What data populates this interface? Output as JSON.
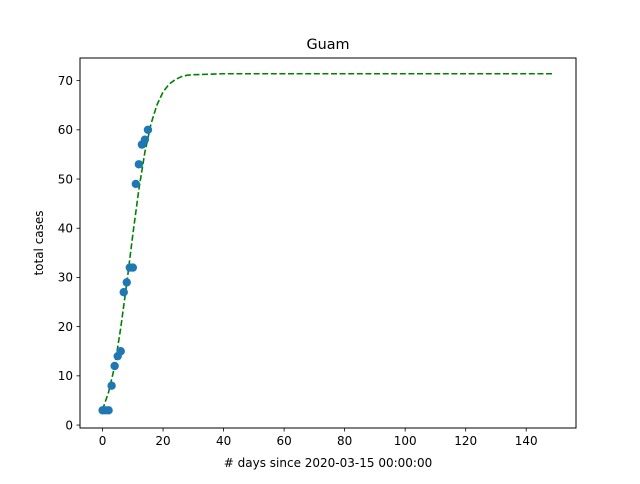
{
  "chart_data": {
    "type": "scatter",
    "title": "Guam",
    "xlabel": "# days since 2020-03-15 00:00:00",
    "ylabel": "total cases",
    "xlim": [
      -7.45,
      156.45
    ],
    "ylim": [
      -0.6,
      74.6
    ],
    "xticks": [
      0,
      20,
      40,
      60,
      80,
      100,
      120,
      140
    ],
    "yticks": [
      0,
      10,
      20,
      30,
      40,
      50,
      60,
      70
    ],
    "grid": false,
    "legend": "none",
    "series": [
      {
        "kind": "points",
        "color": "#1f77b4",
        "x": [
          0,
          1,
          2,
          3,
          4,
          5,
          6,
          7,
          8,
          9,
          10,
          11,
          12,
          13,
          14,
          15
        ],
        "y": [
          3,
          3,
          3,
          8,
          12,
          14,
          15,
          27,
          29,
          32,
          32,
          49,
          53,
          57,
          58,
          60
        ]
      },
      {
        "kind": "fit-curve",
        "style": "dashed",
        "color": "#008000",
        "x": [
          0,
          2,
          4,
          6,
          8,
          10,
          12,
          14,
          16,
          18,
          20,
          22,
          24,
          26,
          28,
          30,
          35,
          40,
          50,
          60,
          80,
          100,
          120,
          140,
          149
        ],
        "y": [
          3.1,
          6.7,
          11.9,
          19.7,
          28.8,
          38.7,
          47.9,
          55.5,
          61.2,
          65.1,
          67.7,
          69.3,
          70.2,
          70.8,
          71.1,
          71.2,
          71.3,
          71.4,
          71.4,
          71.4,
          71.4,
          71.4,
          71.4,
          71.4,
          71.4
        ]
      }
    ]
  }
}
